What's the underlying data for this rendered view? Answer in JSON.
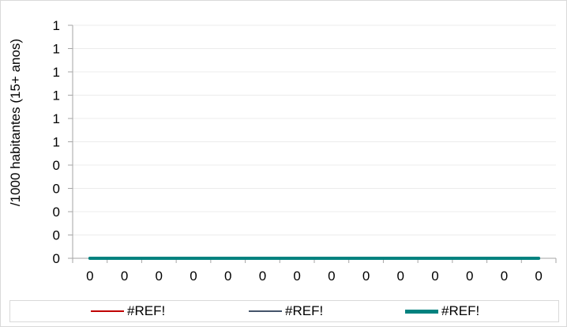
{
  "chart_data": {
    "type": "line",
    "ylabel": "/1000 habitantes (15+ anos)",
    "xlabel": "",
    "y_tick_labels": [
      "0",
      "0",
      "0",
      "0",
      "0",
      "1",
      "1",
      "1",
      "1",
      "1",
      "1"
    ],
    "x_tick_labels": [
      "0",
      "0",
      "0",
      "0",
      "0",
      "0",
      "0",
      "0",
      "0",
      "0",
      "0",
      "0",
      "0",
      "0"
    ],
    "ylim": [
      0,
      1
    ],
    "grid": true,
    "legend_position": "bottom",
    "series": [
      {
        "name": "#REF!",
        "color": "#c00000",
        "values": [
          0,
          0,
          0,
          0,
          0,
          0,
          0,
          0,
          0,
          0,
          0,
          0,
          0,
          0
        ]
      },
      {
        "name": "#REF!",
        "color": "#44546a",
        "values": [
          0,
          0,
          0,
          0,
          0,
          0,
          0,
          0,
          0,
          0,
          0,
          0,
          0,
          0
        ]
      },
      {
        "name": "#REF!",
        "color": "#00827f",
        "values": [
          0,
          0,
          0,
          0,
          0,
          0,
          0,
          0,
          0,
          0,
          0,
          0,
          0,
          0
        ]
      }
    ]
  }
}
